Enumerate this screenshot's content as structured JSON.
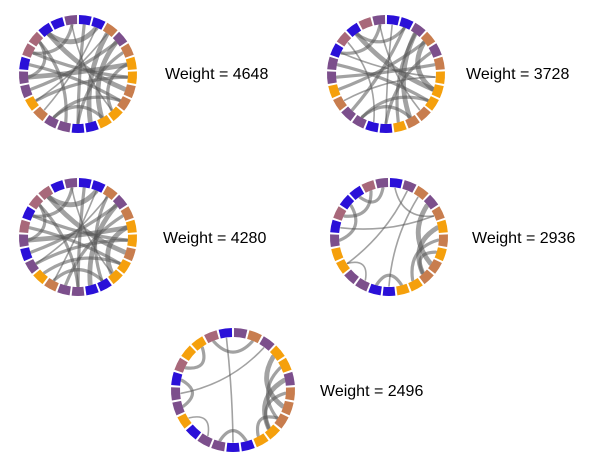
{
  "palette": {
    "orange": "#f5a00c",
    "tan": "#c87d4e",
    "blue": "#2a10d8",
    "purple": "#7c4f8c",
    "mauve": "#a8687a",
    "chord": "#555555"
  },
  "panels": [
    {
      "label": "Weight = 4648",
      "segments": [
        "blue",
        "blue",
        "tan",
        "purple",
        "tan",
        "orange",
        "orange",
        "tan",
        "tan",
        "orange",
        "orange",
        "blue",
        "blue",
        "purple",
        "purple",
        "tan",
        "orange",
        "purple",
        "purple",
        "blue",
        "mauve",
        "mauve",
        "blue",
        "blue",
        "purple"
      ],
      "chords": [
        [
          3,
          10,
          3
        ],
        [
          4,
          12,
          2
        ],
        [
          5,
          18,
          3
        ],
        [
          6,
          20,
          2
        ],
        [
          7,
          22,
          3
        ],
        [
          8,
          14,
          2
        ],
        [
          9,
          24,
          1
        ],
        [
          11,
          2,
          3
        ],
        [
          13,
          21,
          2
        ],
        [
          15,
          1,
          1
        ],
        [
          16,
          6,
          2
        ],
        [
          17,
          3,
          2
        ],
        [
          19,
          8,
          2
        ],
        [
          0,
          12,
          2
        ],
        [
          2,
          16,
          1
        ],
        [
          5,
          9,
          2
        ],
        [
          10,
          14,
          2
        ],
        [
          20,
          24,
          2
        ],
        [
          22,
          1,
          3
        ],
        [
          18,
          21,
          2
        ]
      ]
    },
    {
      "label": "Weight = 3728",
      "segments": [
        "blue",
        "blue",
        "purple",
        "tan",
        "purple",
        "tan",
        "orange",
        "orange",
        "orange",
        "tan",
        "tan",
        "orange",
        "blue",
        "blue",
        "purple",
        "purple",
        "tan",
        "orange",
        "purple",
        "purple",
        "blue",
        "mauve",
        "blue",
        "mauve",
        "purple"
      ],
      "chords": [
        [
          2,
          10,
          3
        ],
        [
          4,
          12,
          2
        ],
        [
          5,
          18,
          2
        ],
        [
          6,
          20,
          1
        ],
        [
          7,
          22,
          3
        ],
        [
          8,
          14,
          2
        ],
        [
          9,
          24,
          1
        ],
        [
          11,
          2,
          2
        ],
        [
          13,
          21,
          1
        ],
        [
          15,
          1,
          2
        ],
        [
          16,
          6,
          1
        ],
        [
          17,
          3,
          2
        ],
        [
          19,
          8,
          2
        ],
        [
          0,
          12,
          1
        ],
        [
          3,
          7,
          3
        ],
        [
          10,
          14,
          2
        ],
        [
          20,
          24,
          2
        ],
        [
          22,
          1,
          2
        ]
      ]
    },
    {
      "label": "Weight = 4280",
      "segments": [
        "blue",
        "blue",
        "tan",
        "purple",
        "tan",
        "orange",
        "orange",
        "tan",
        "orange",
        "orange",
        "blue",
        "blue",
        "purple",
        "purple",
        "tan",
        "orange",
        "purple",
        "blue",
        "purple",
        "mauve",
        "blue",
        "mauve",
        "mauve",
        "blue",
        "purple"
      ],
      "chords": [
        [
          3,
          11,
          3
        ],
        [
          4,
          13,
          2
        ],
        [
          5,
          18,
          3
        ],
        [
          6,
          20,
          2
        ],
        [
          7,
          22,
          3
        ],
        [
          8,
          15,
          2
        ],
        [
          9,
          24,
          1
        ],
        [
          10,
          2,
          2
        ],
        [
          12,
          21,
          2
        ],
        [
          14,
          1,
          1
        ],
        [
          16,
          6,
          2
        ],
        [
          17,
          3,
          2
        ],
        [
          19,
          8,
          2
        ],
        [
          0,
          12,
          2
        ],
        [
          2,
          16,
          1
        ],
        [
          5,
          9,
          3
        ],
        [
          10,
          14,
          2
        ],
        [
          20,
          24,
          2
        ],
        [
          22,
          1,
          3
        ],
        [
          18,
          21,
          2
        ]
      ]
    },
    {
      "label": "Weight = 2936",
      "segments": [
        "blue",
        "purple",
        "tan",
        "purple",
        "tan",
        "orange",
        "tan",
        "orange",
        "tan",
        "tan",
        "orange",
        "orange",
        "blue",
        "blue",
        "purple",
        "purple",
        "orange",
        "orange",
        "purple",
        "blue",
        "mauve",
        "blue",
        "blue",
        "mauve",
        "purple"
      ],
      "chords": [
        [
          3,
          8,
          3
        ],
        [
          5,
          9,
          3
        ],
        [
          6,
          10,
          2
        ],
        [
          7,
          9,
          2
        ],
        [
          2,
          12,
          1
        ],
        [
          11,
          13,
          2
        ],
        [
          14,
          16,
          1
        ],
        [
          18,
          21,
          2
        ],
        [
          20,
          23,
          2
        ],
        [
          22,
          24,
          2
        ],
        [
          0,
          4,
          1
        ],
        [
          4,
          19,
          1
        ],
        [
          1,
          16,
          1
        ]
      ]
    },
    {
      "label": "Weight = 2496",
      "segments": [
        "purple",
        "tan",
        "purple",
        "orange",
        "orange",
        "purple",
        "tan",
        "tan",
        "tan",
        "orange",
        "orange",
        "blue",
        "blue",
        "purple",
        "purple",
        "blue",
        "orange",
        "purple",
        "purple",
        "blue",
        "mauve",
        "orange",
        "orange",
        "mauve",
        "blue"
      ],
      "chords": [
        [
          3,
          7,
          3
        ],
        [
          4,
          8,
          2
        ],
        [
          5,
          9,
          3
        ],
        [
          6,
          9,
          2
        ],
        [
          8,
          10,
          2
        ],
        [
          11,
          13,
          2
        ],
        [
          14,
          16,
          1
        ],
        [
          17,
          19,
          2
        ],
        [
          20,
          22,
          2
        ],
        [
          23,
          1,
          2
        ],
        [
          2,
          18,
          1
        ],
        [
          24,
          12,
          1
        ]
      ]
    }
  ]
}
